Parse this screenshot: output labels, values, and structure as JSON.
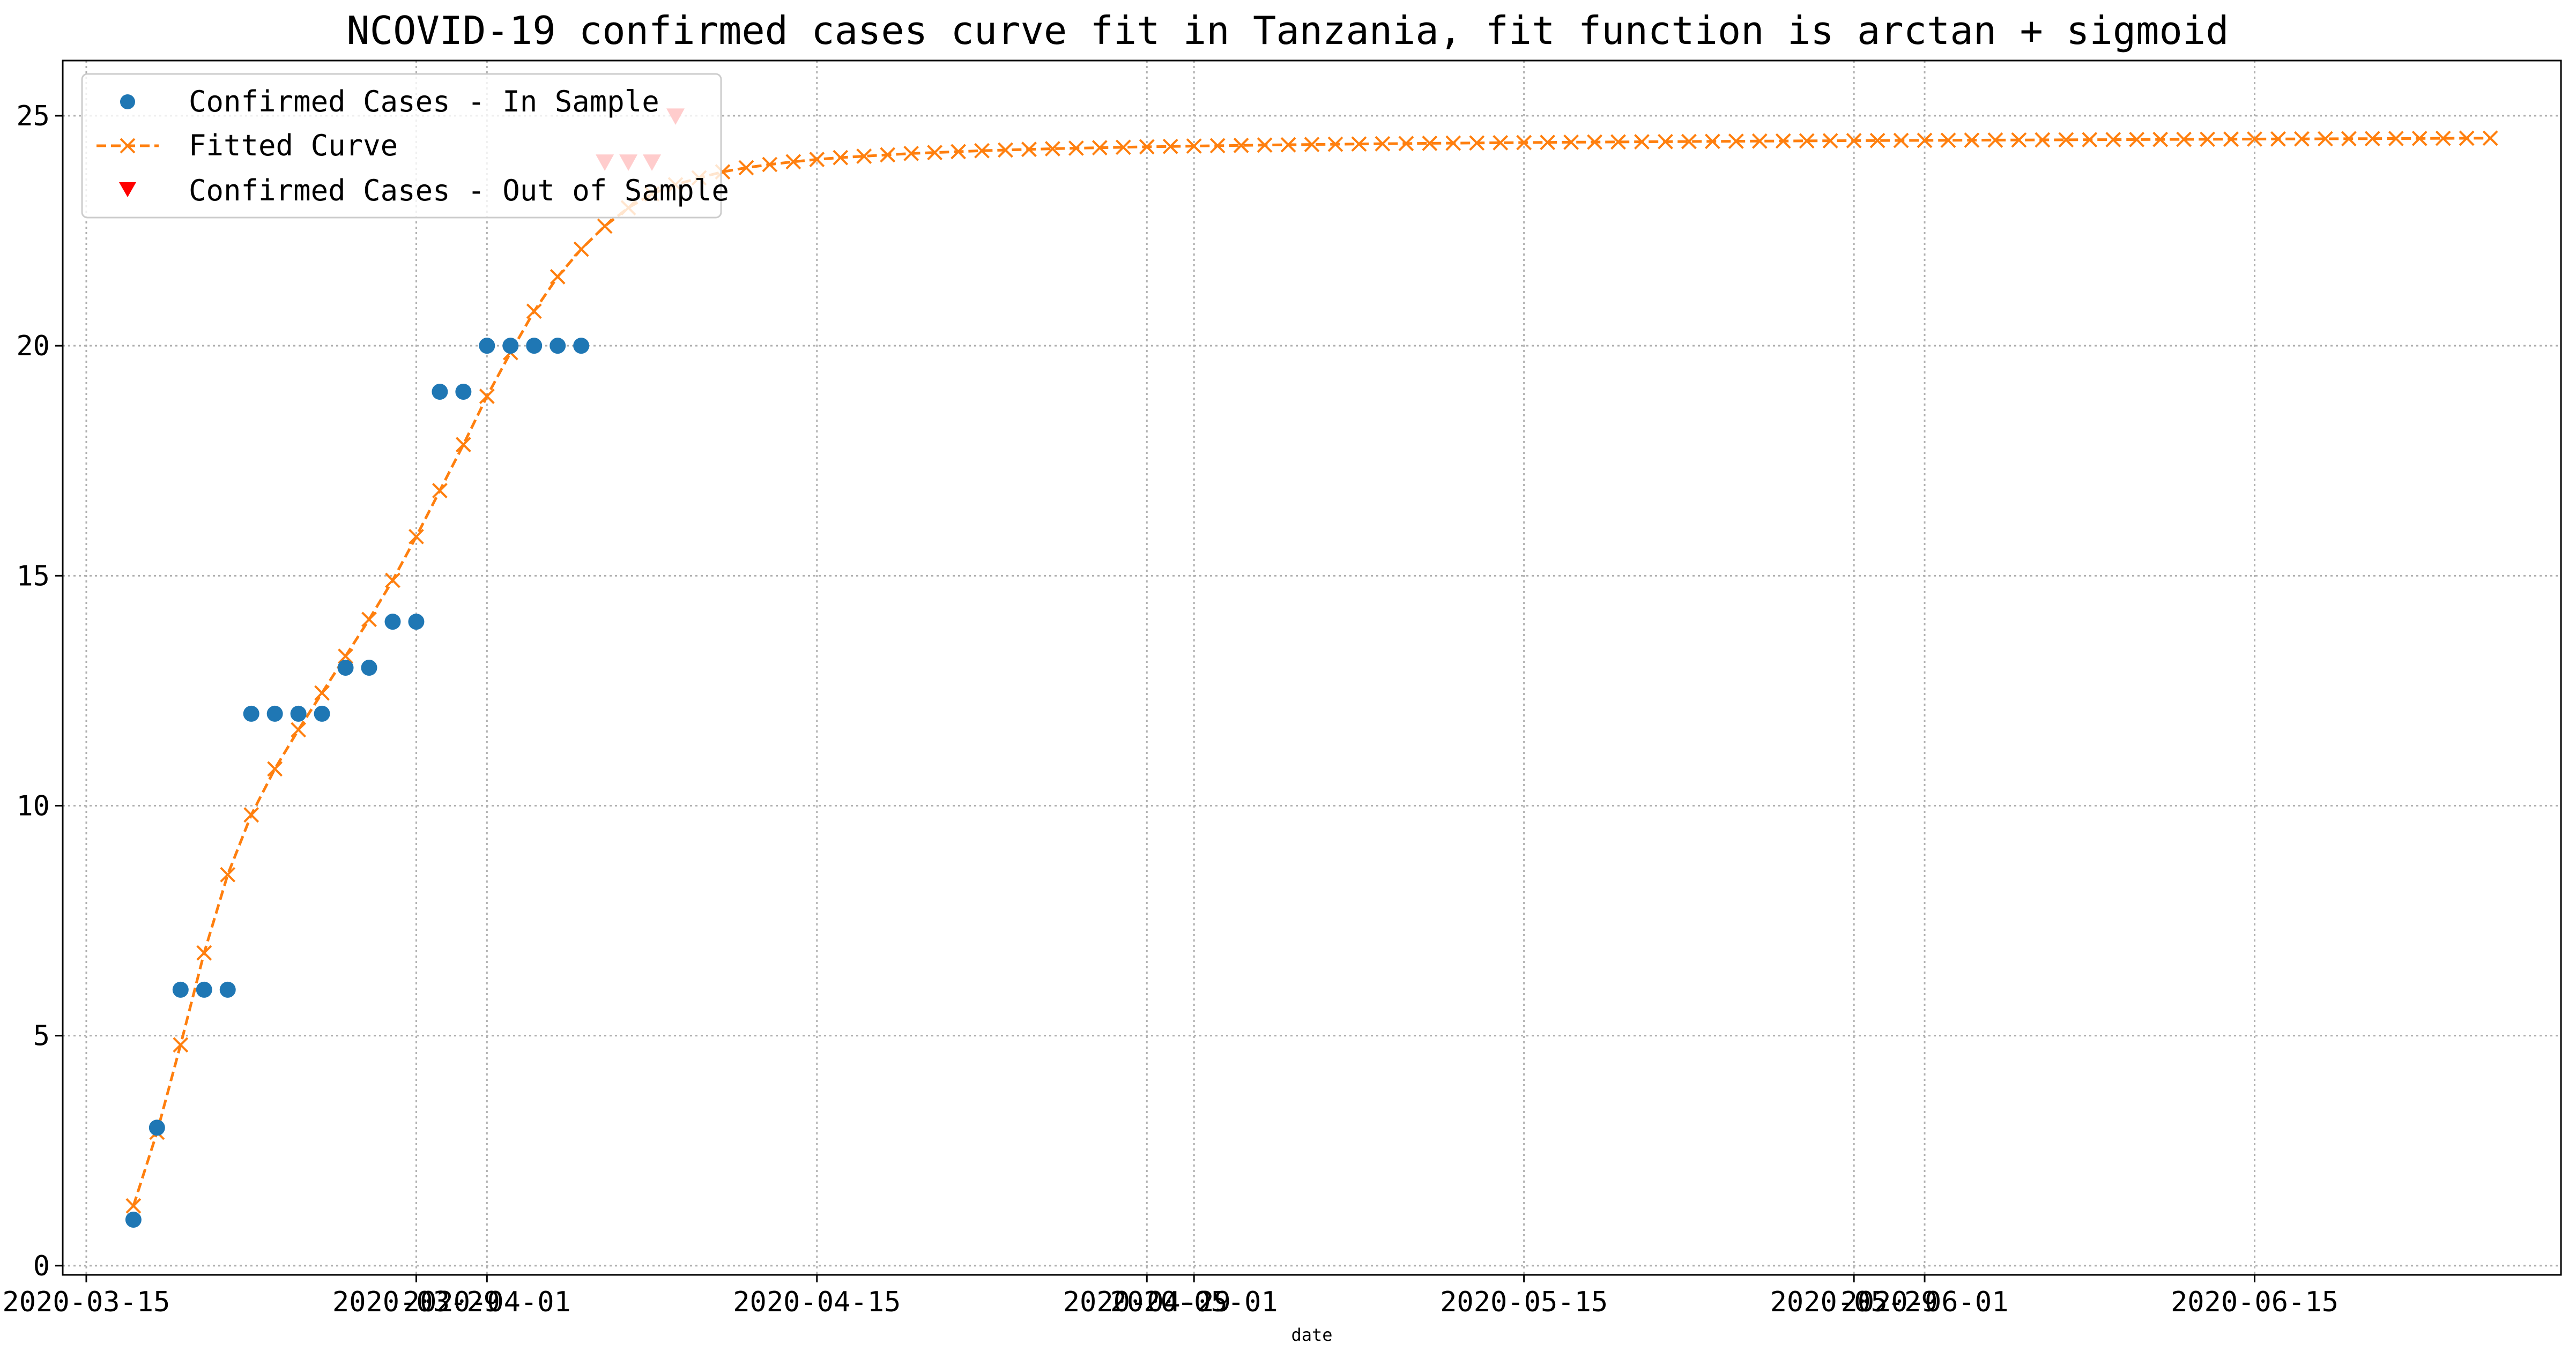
{
  "chart_data": {
    "type": "line",
    "title": "NCOVID-19 confirmed cases curve fit in Tanzania, fit function is arctan + sigmoid",
    "xlabel": "date",
    "ylabel": "",
    "xlim": [
      "2020-03-14",
      "2020-06-28"
    ],
    "ylim": [
      -0.2,
      26.2
    ],
    "grid": true,
    "legend_position": "top-left",
    "x_tick_labels": [
      "2020-03-15",
      "2020-03-29",
      "2020-04-01",
      "2020-04-15",
      "2020-04-29",
      "2020-05-01",
      "2020-05-15",
      "2020-05-29",
      "2020-06-01",
      "2020-06-15"
    ],
    "y_ticks": [
      0,
      5,
      10,
      15,
      20,
      25
    ],
    "series": [
      {
        "name": "Confirmed Cases - In Sample",
        "marker": "circle",
        "color": "#1f77b4",
        "x": [
          "2020-03-17",
          "2020-03-18",
          "2020-03-19",
          "2020-03-20",
          "2020-03-21",
          "2020-03-22",
          "2020-03-23",
          "2020-03-24",
          "2020-03-25",
          "2020-03-26",
          "2020-03-27",
          "2020-03-28",
          "2020-03-29",
          "2020-03-30",
          "2020-03-31",
          "2020-04-01",
          "2020-04-02",
          "2020-04-03",
          "2020-04-04",
          "2020-04-05"
        ],
        "y": [
          1,
          3,
          6,
          6,
          6,
          12,
          12,
          12,
          12,
          13,
          13,
          14,
          14,
          19,
          19,
          20,
          20,
          20,
          20,
          20
        ]
      },
      {
        "name": "Fitted Curve",
        "marker": "x",
        "line": "dashed",
        "color": "#ff7f0e",
        "x_start": "2020-03-17",
        "x_end": "2020-06-25",
        "y": [
          1.3,
          2.9,
          4.8,
          6.8,
          8.5,
          9.8,
          10.8,
          11.65,
          12.45,
          13.25,
          14.05,
          14.9,
          15.85,
          16.85,
          17.85,
          18.9,
          19.85,
          20.75,
          21.5,
          22.1,
          22.6,
          23.0,
          23.3,
          23.5,
          23.65,
          23.78,
          23.87,
          23.94,
          24.0,
          24.05,
          24.09,
          24.12,
          24.15,
          24.18,
          24.2,
          24.22,
          24.24,
          24.255,
          24.27,
          24.283,
          24.295,
          24.305,
          24.315,
          24.325,
          24.333,
          24.341,
          24.349,
          24.356,
          24.363,
          24.369,
          24.375,
          24.381,
          24.386,
          24.391,
          24.396,
          24.401,
          24.405,
          24.409,
          24.413,
          24.417,
          24.421,
          24.425,
          24.428,
          24.431,
          24.434,
          24.437,
          24.44,
          24.443,
          24.446,
          24.449,
          24.451,
          24.454,
          24.456,
          24.459,
          24.461,
          24.463,
          24.465,
          24.467,
          24.469,
          24.471,
          24.473,
          24.475,
          24.477,
          24.479,
          24.481,
          24.483,
          24.485,
          24.487,
          24.489,
          24.491,
          24.493,
          24.495,
          24.497,
          24.499,
          24.501,
          24.503,
          24.505,
          24.507,
          24.509,
          24.511,
          24.513
        ]
      },
      {
        "name": "Confirmed Cases - Out of Sample",
        "marker": "triangle-down",
        "color": "#ff0000",
        "x": [
          "2020-04-06",
          "2020-04-07",
          "2020-04-08",
          "2020-04-09"
        ],
        "y": [
          24,
          24,
          24,
          25
        ]
      }
    ]
  }
}
